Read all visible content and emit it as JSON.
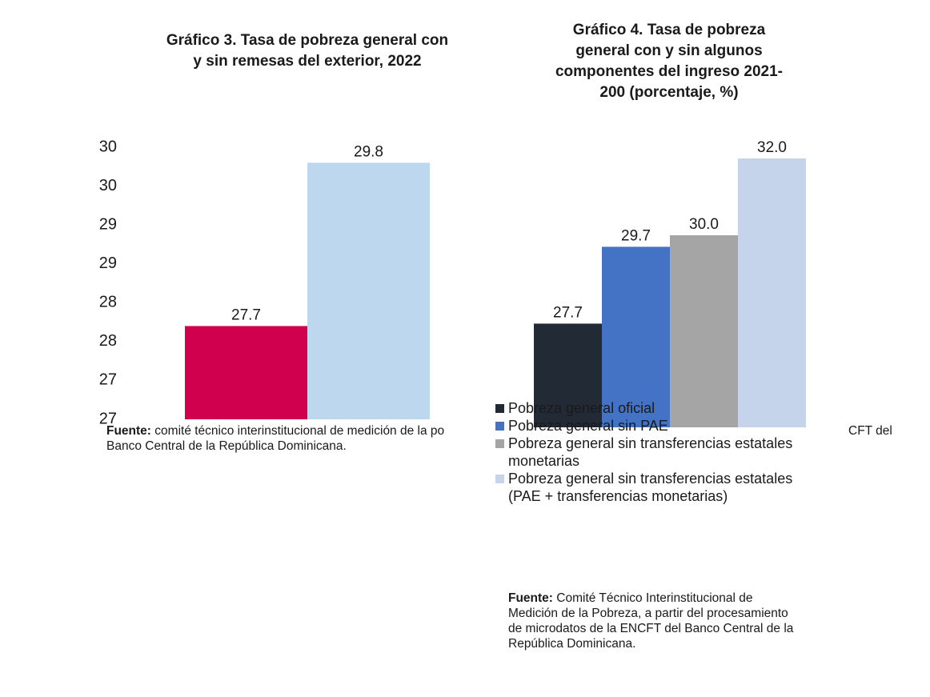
{
  "chart_data": [
    {
      "type": "bar",
      "title": [
        "Gráfico 3. Tasa de pobreza general con",
        "y sin remesas del exterior, 2022"
      ],
      "values": [
        27.7,
        29.8
      ],
      "colors": [
        "#d0004f",
        "#bdd7ee"
      ],
      "ylim": [
        26.5,
        30.0
      ],
      "yticks": [
        {
          "value": 30.0,
          "label": "30"
        },
        {
          "value": 29.5,
          "label": "30"
        },
        {
          "value": 29.0,
          "label": "29"
        },
        {
          "value": 28.5,
          "label": "29"
        },
        {
          "value": 28.0,
          "label": "28"
        },
        {
          "value": 27.5,
          "label": "28"
        },
        {
          "value": 27.0,
          "label": "27"
        },
        {
          "value": 26.5,
          "label": "27"
        }
      ],
      "footnote": {
        "label": "Fuente:",
        "text": [
          "comité técnico interinstitucional de medición de la po",
          "CFT del",
          "Banco Central de la República Dominicana."
        ]
      }
    },
    {
      "type": "bar",
      "title": [
        "Gráfico 4. Tasa de pobreza",
        "general con y sin algunos",
        "componentes del ingreso 2021-",
        "200 (porcentaje, %)"
      ],
      "ylim": [
        25,
        32.5
      ],
      "series": [
        {
          "name": "Pobreza general oficial",
          "color": "#222a35",
          "values": [
            27.7
          ],
          "value_labels": [
            "27.7"
          ]
        },
        {
          "name": "Pobreza general sin PAE",
          "color": "#4472c4",
          "values": [
            29.7
          ],
          "value_labels": [
            "29.7"
          ]
        },
        {
          "name": "Pobreza general sin transferencias estatales monetarias",
          "color": "#a5a5a5",
          "values": [
            30.0
          ],
          "value_labels": [
            "30.0"
          ]
        },
        {
          "name": "Pobreza general sin transferencias estatales (PAE + transferencias monetarias)",
          "color": "#c5d3eb",
          "values": [
            32.0
          ],
          "value_labels": [
            "32.0"
          ]
        }
      ],
      "footnote": {
        "label": "Fuente:",
        "text": [
          "Comité Técnico Interinstitucional de Medición de la Pobreza, a partir del procesamiento de microdatos de la ENCFT del Banco Central de la República Dominicana."
        ]
      }
    }
  ]
}
